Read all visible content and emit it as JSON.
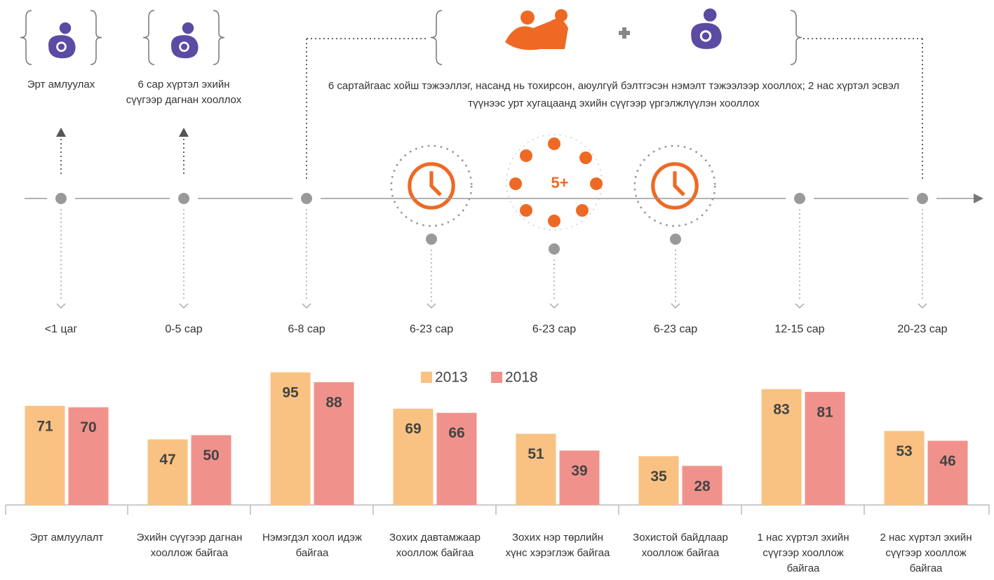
{
  "caption": "6 сартайгаас хойш тэжээллэг, насанд нь тохирсон, аюулгүй бэлтгэсэн нэмэлт тэжээлээр хооллох; 2 нас хүртэл эсвэл түүнээс урт хугацаанд эхийн сүүгээр үргэлжлүүлэн хооллох",
  "top_labels": [
    "Эрт амлуулах",
    "6 сар хүртэл эхийн сүүгээр дагнан хооллох"
  ],
  "timeline_labels": [
    "<1 цаг",
    "0-5 сар",
    "6-8 сар",
    "6-23 сар",
    "6-23 сар",
    "6-23 сар",
    "12-15 сар",
    "20-23 сар"
  ],
  "chart_data": {
    "type": "bar",
    "categories": [
      "Эрт амлуулалт",
      "Эхийн сүүгээр дагнан хооллож байгаа",
      "Нэмэгдэл хоол идэж байгаа",
      "Зохих давтамжаар хооллож байгаа",
      "Зохих нэр төрлийн хүнс хэрэглэж байгаа",
      "Зохистой байдлаар хооллож байгаа",
      "1 нас хүртэл эхийн сүүгээр хооллож байгаа",
      "2 нас хүртэл эхийн сүүгээр хооллож байгаа"
    ],
    "series": [
      {
        "name": "2013",
        "color": "#F9C282",
        "values": [
          71,
          47,
          95,
          69,
          51,
          35,
          83,
          53
        ]
      },
      {
        "name": "2018",
        "color": "#F0928B",
        "values": [
          70,
          50,
          88,
          66,
          39,
          28,
          81,
          46
        ]
      }
    ],
    "legend": "top"
  }
}
